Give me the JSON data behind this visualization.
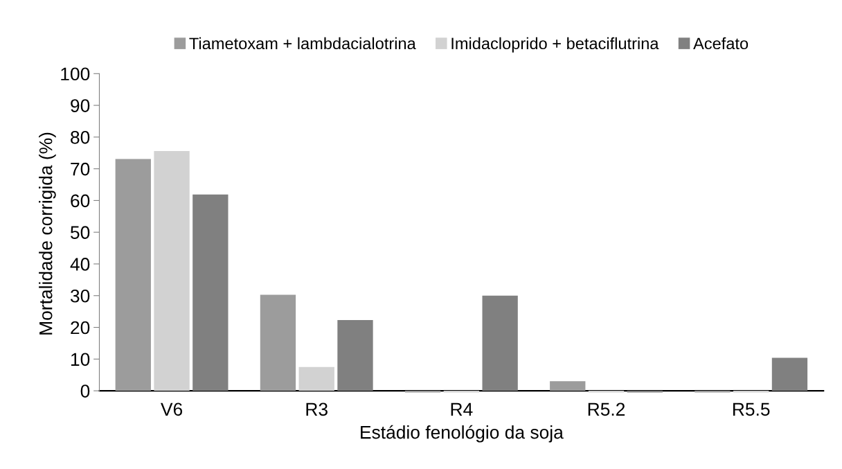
{
  "chart_data": {
    "type": "bar",
    "xlabel": "Estádio fenológio da soja",
    "ylabel": "Mortalidade corrigida (%)",
    "categories": [
      "V6",
      "R3",
      "R4",
      "R5.2",
      "R5.5"
    ],
    "series": [
      {
        "name": "Tiametoxam + lambdacialotrina",
        "color": "#9c9c9c",
        "values": [
          73.1,
          30.3,
          -0.5,
          3.0,
          -0.5
        ]
      },
      {
        "name": "Imidacloprido + betaciflutrina",
        "color": "#d2d2d2",
        "values": [
          75.6,
          7.5,
          -0.5,
          -0.5,
          -0.5
        ]
      },
      {
        "name": "Acefato",
        "color": "#808080",
        "values": [
          61.9,
          22.3,
          30.0,
          -0.5,
          10.4
        ]
      }
    ],
    "ylim": [
      -1,
      100
    ],
    "yticks": [
      0,
      10,
      20,
      30,
      40,
      50,
      60,
      70,
      80,
      90,
      100
    ],
    "grid": false,
    "legend": "top"
  }
}
